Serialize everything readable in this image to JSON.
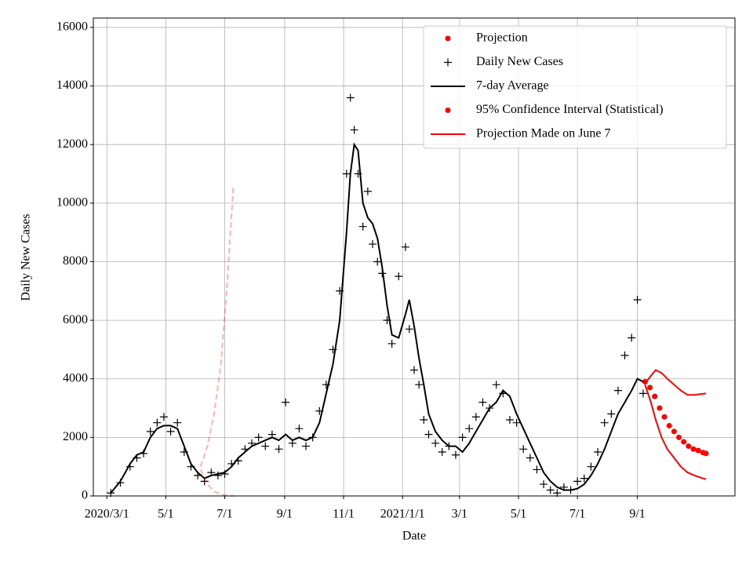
{
  "chart_data": {
    "type": "scatter-line",
    "xlabel": "Date",
    "ylabel": "Daily New Cases",
    "xlim": [
      "2020-02-16",
      "2021-12-11"
    ],
    "xticks": [
      {
        "value": "2020-03-01",
        "label": "2020/3/1"
      },
      {
        "value": "2020-05-01",
        "label": "5/1"
      },
      {
        "value": "2020-07-01",
        "label": "7/1"
      },
      {
        "value": "2020-09-01",
        "label": "9/1"
      },
      {
        "value": "2020-11-01",
        "label": "11/1"
      },
      {
        "value": "2021-01-01",
        "label": "2021/1/1"
      },
      {
        "value": "2021-03-01",
        "label": "3/1"
      },
      {
        "value": "2021-05-01",
        "label": "5/1"
      },
      {
        "value": "2021-07-01",
        "label": "7/1"
      },
      {
        "value": "2021-09-01",
        "label": "9/1"
      }
    ],
    "ylim": [
      0,
      16320
    ],
    "yticks": [
      0,
      2000,
      4000,
      6000,
      8000,
      10000,
      12000,
      14000,
      16000
    ],
    "grid": true,
    "legend_position": "upper right",
    "series": [
      {
        "name": "Projection",
        "color": "#ff0000",
        "style": "dots",
        "legend": "dot",
        "x": [
          "2021-09-09",
          "2021-09-14",
          "2021-09-19",
          "2021-09-24",
          "2021-09-29",
          "2021-10-04",
          "2021-10-09",
          "2021-10-14",
          "2021-10-19",
          "2021-10-24",
          "2021-10-29",
          "2021-11-03",
          "2021-11-08",
          "2021-11-11"
        ],
        "values": [
          3900,
          3700,
          3400,
          3000,
          2700,
          2400,
          2200,
          2000,
          1850,
          1700,
          1600,
          1550,
          1480,
          1450
        ]
      },
      {
        "name": "Daily New Cases",
        "color": "#000000",
        "style": "plus",
        "legend": "plus",
        "x": [
          "2020-03-05",
          "2020-03-15",
          "2020-03-25",
          "2020-04-01",
          "2020-04-08",
          "2020-04-15",
          "2020-04-22",
          "2020-04-29",
          "2020-05-06",
          "2020-05-13",
          "2020-05-20",
          "2020-05-27",
          "2020-06-03",
          "2020-06-10",
          "2020-06-17",
          "2020-06-24",
          "2020-07-01",
          "2020-07-08",
          "2020-07-15",
          "2020-07-22",
          "2020-07-29",
          "2020-08-05",
          "2020-08-12",
          "2020-08-19",
          "2020-08-26",
          "2020-09-02",
          "2020-09-09",
          "2020-09-16",
          "2020-09-23",
          "2020-09-30",
          "2020-10-07",
          "2020-10-14",
          "2020-10-21",
          "2020-10-28",
          "2020-11-04",
          "2020-11-08",
          "2020-11-12",
          "2020-11-16",
          "2020-11-21",
          "2020-11-26",
          "2020-12-01",
          "2020-12-06",
          "2020-12-11",
          "2020-12-16",
          "2020-12-21",
          "2020-12-28",
          "2021-01-04",
          "2021-01-08",
          "2021-01-13",
          "2021-01-18",
          "2021-01-23",
          "2021-01-28",
          "2021-02-04",
          "2021-02-11",
          "2021-02-18",
          "2021-02-25",
          "2021-03-04",
          "2021-03-11",
          "2021-03-18",
          "2021-03-25",
          "2021-04-01",
          "2021-04-08",
          "2021-04-15",
          "2021-04-22",
          "2021-04-29",
          "2021-05-06",
          "2021-05-13",
          "2021-05-20",
          "2021-05-27",
          "2021-06-03",
          "2021-06-10",
          "2021-06-17",
          "2021-06-24",
          "2021-07-01",
          "2021-07-08",
          "2021-07-15",
          "2021-07-22",
          "2021-07-29",
          "2021-08-05",
          "2021-08-12",
          "2021-08-19",
          "2021-08-26",
          "2021-09-01",
          "2021-09-07"
        ],
        "values": [
          100,
          450,
          1000,
          1300,
          1450,
          2200,
          2500,
          2700,
          2200,
          2500,
          1500,
          1000,
          700,
          500,
          800,
          700,
          750,
          1100,
          1200,
          1600,
          1800,
          2000,
          1700,
          2100,
          1600,
          3200,
          1800,
          2300,
          1700,
          2000,
          2900,
          3800,
          5000,
          7000,
          11000,
          13600,
          12500,
          11000,
          9200,
          10400,
          8600,
          8000,
          7600,
          6000,
          5200,
          7500,
          8500,
          5700,
          4300,
          3800,
          2600,
          2100,
          1800,
          1500,
          1700,
          1400,
          2000,
          2300,
          2700,
          3200,
          3000,
          3800,
          3500,
          2600,
          2500,
          1600,
          1300,
          900,
          400,
          200,
          100,
          300,
          200,
          500,
          600,
          1000,
          1500,
          2500,
          2800,
          3600,
          4800,
          5400,
          6700,
          3500
        ]
      },
      {
        "name": "7-day Average",
        "color": "#000000",
        "style": "line",
        "legend": "line",
        "x": [
          "2020-03-05",
          "2020-03-15",
          "2020-03-25",
          "2020-04-01",
          "2020-04-08",
          "2020-04-15",
          "2020-04-22",
          "2020-04-29",
          "2020-05-06",
          "2020-05-13",
          "2020-05-20",
          "2020-05-27",
          "2020-06-03",
          "2020-06-10",
          "2020-06-17",
          "2020-06-24",
          "2020-07-01",
          "2020-07-08",
          "2020-07-15",
          "2020-07-22",
          "2020-07-29",
          "2020-08-05",
          "2020-08-12",
          "2020-08-19",
          "2020-08-26",
          "2020-09-02",
          "2020-09-09",
          "2020-09-16",
          "2020-09-23",
          "2020-09-30",
          "2020-10-07",
          "2020-10-14",
          "2020-10-21",
          "2020-10-28",
          "2020-11-04",
          "2020-11-08",
          "2020-11-12",
          "2020-11-16",
          "2020-11-21",
          "2020-11-26",
          "2020-12-01",
          "2020-12-06",
          "2020-12-11",
          "2020-12-16",
          "2020-12-21",
          "2020-12-28",
          "2021-01-04",
          "2021-01-08",
          "2021-01-13",
          "2021-01-18",
          "2021-01-23",
          "2021-01-28",
          "2021-02-04",
          "2021-02-11",
          "2021-02-18",
          "2021-02-25",
          "2021-03-04",
          "2021-03-11",
          "2021-03-18",
          "2021-03-25",
          "2021-04-01",
          "2021-04-08",
          "2021-04-15",
          "2021-04-22",
          "2021-04-29",
          "2021-05-06",
          "2021-05-13",
          "2021-05-20",
          "2021-05-27",
          "2021-06-03",
          "2021-06-10",
          "2021-06-17",
          "2021-06-24",
          "2021-07-01",
          "2021-07-08",
          "2021-07-15",
          "2021-07-22",
          "2021-07-29",
          "2021-08-05",
          "2021-08-12",
          "2021-08-19",
          "2021-08-26",
          "2021-09-01",
          "2021-09-07"
        ],
        "values": [
          100,
          500,
          1100,
          1400,
          1500,
          2000,
          2300,
          2400,
          2400,
          2300,
          1700,
          1100,
          800,
          600,
          700,
          750,
          800,
          1000,
          1300,
          1500,
          1700,
          1800,
          1900,
          2000,
          1900,
          2100,
          1900,
          2000,
          1900,
          2000,
          2500,
          3500,
          4500,
          6000,
          9000,
          11000,
          12000,
          11800,
          10000,
          9500,
          9300,
          8800,
          7800,
          6500,
          5500,
          5400,
          6200,
          6700,
          5800,
          4700,
          3800,
          2800,
          2200,
          1900,
          1700,
          1700,
          1500,
          1800,
          2200,
          2600,
          3000,
          3200,
          3600,
          3400,
          2800,
          2300,
          1800,
          1300,
          800,
          500,
          300,
          200,
          200,
          250,
          400,
          700,
          1100,
          1600,
          2200,
          2800,
          3200,
          3600,
          4000,
          3900
        ]
      },
      {
        "name": "95% Confidence Interval (Statistical)",
        "color": "#ff0000",
        "style": "bands",
        "legend": "dot",
        "x": [
          "2021-09-09",
          "2021-09-15",
          "2021-09-20",
          "2021-09-26",
          "2021-10-02",
          "2021-10-09",
          "2021-10-16",
          "2021-10-23",
          "2021-10-30",
          "2021-11-06",
          "2021-11-11"
        ],
        "upper": [
          3850,
          4100,
          4300,
          4200,
          4000,
          3800,
          3600,
          3450,
          3450,
          3480,
          3500
        ],
        "lower": [
          3800,
          3200,
          2600,
          2000,
          1600,
          1300,
          1000,
          800,
          700,
          620,
          570
        ]
      },
      {
        "name": "Projection Made on June 7",
        "color": "#ff0000",
        "style": "dashed-bands",
        "legend": "line",
        "alpha": 0.3,
        "x": [
          "2020-06-06",
          "2020-06-13",
          "2020-06-20",
          "2020-06-27",
          "2020-07-03",
          "2020-07-10"
        ],
        "upper": [
          1000,
          1700,
          2800,
          4500,
          7000,
          10600
        ],
        "lower": [
          900,
          400,
          150,
          50,
          20,
          0
        ]
      }
    ]
  }
}
